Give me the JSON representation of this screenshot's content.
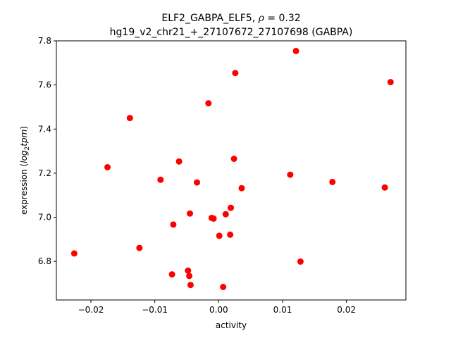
{
  "chart_data": {
    "type": "scatter",
    "title_line1_prefix": "ELF2_GABPA_ELF5, ",
    "title_line1_rho": "ρ",
    "title_line1_suffix": " = 0.32",
    "title_line2": "hg19_v2_chr21_+_27107672_27107698 (GABPA)",
    "xlabel": "activity",
    "ylabel_prefix": "expression (",
    "ylabel_italic": "log",
    "ylabel_sub": "2",
    "ylabel_italic2": "tpm",
    "ylabel_suffix": ")",
    "xlim": [
      -0.0254,
      0.0293
    ],
    "ylim": [
      6.625,
      7.8
    ],
    "x_ticks": [
      -0.02,
      -0.01,
      0.0,
      0.01,
      0.02
    ],
    "x_tick_labels": [
      "−0.02",
      "−0.01",
      "0.00",
      "0.01",
      "0.02"
    ],
    "y_ticks": [
      6.8,
      7.0,
      7.2,
      7.4,
      7.6,
      7.8
    ],
    "y_tick_labels": [
      "6.8",
      "7.0",
      "7.2",
      "7.4",
      "7.6",
      "7.8"
    ],
    "marker_color": "#ff0000",
    "points": [
      {
        "x": -0.0226,
        "y": 6.836
      },
      {
        "x": -0.0174,
        "y": 7.227
      },
      {
        "x": -0.0139,
        "y": 7.45
      },
      {
        "x": -0.0124,
        "y": 6.861
      },
      {
        "x": -0.0091,
        "y": 7.17
      },
      {
        "x": -0.0073,
        "y": 6.741
      },
      {
        "x": -0.0071,
        "y": 6.967
      },
      {
        "x": -0.0062,
        "y": 7.253
      },
      {
        "x": -0.0048,
        "y": 6.758
      },
      {
        "x": -0.0046,
        "y": 6.734
      },
      {
        "x": -0.0045,
        "y": 7.017
      },
      {
        "x": -0.0044,
        "y": 6.693
      },
      {
        "x": -0.0034,
        "y": 7.158
      },
      {
        "x": -0.0016,
        "y": 7.517
      },
      {
        "x": -0.0011,
        "y": 6.997
      },
      {
        "x": -0.0008,
        "y": 6.994
      },
      {
        "x": 0.0001,
        "y": 6.916
      },
      {
        "x": 0.0007,
        "y": 6.684
      },
      {
        "x": 0.0011,
        "y": 7.014
      },
      {
        "x": 0.0018,
        "y": 6.921
      },
      {
        "x": 0.0019,
        "y": 7.043
      },
      {
        "x": 0.0024,
        "y": 7.265
      },
      {
        "x": 0.0026,
        "y": 7.654
      },
      {
        "x": 0.0036,
        "y": 7.132
      },
      {
        "x": 0.0112,
        "y": 7.193
      },
      {
        "x": 0.0121,
        "y": 7.754
      },
      {
        "x": 0.0128,
        "y": 6.799
      },
      {
        "x": 0.0178,
        "y": 7.16
      },
      {
        "x": 0.026,
        "y": 7.135
      },
      {
        "x": 0.0269,
        "y": 7.613
      }
    ]
  }
}
